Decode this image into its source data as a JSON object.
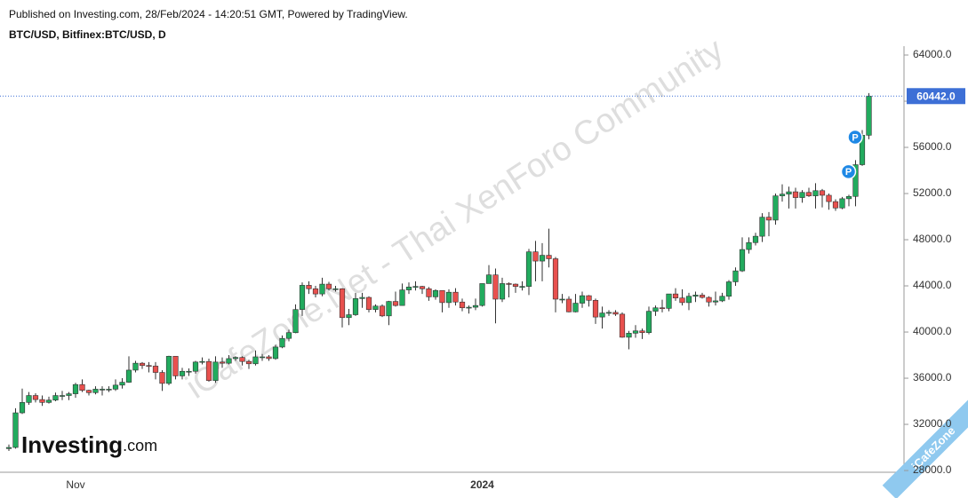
{
  "header": {
    "published": "Published on Investing.com, 28/Feb/2024 - 14:20:51 GMT, Powered by TradingView.",
    "symbol": "BTC/USD, Bitfinex:BTC/USD, D"
  },
  "watermark": "iCafeZone.Net - Thai XenForo Community",
  "logo": {
    "brand": "Investing",
    "suffix": ".com"
  },
  "badge": "iCafeZone",
  "chart_data": {
    "type": "candlestick",
    "categories": [
      null,
      null,
      null,
      null,
      null,
      null,
      null,
      null,
      null,
      null,
      "Nov",
      null,
      null,
      null,
      null,
      null,
      null,
      null,
      null,
      null,
      null,
      null,
      null,
      null,
      null,
      null,
      null,
      null,
      null,
      null,
      null,
      null,
      null,
      null,
      null,
      null,
      null,
      null,
      null,
      null,
      null,
      null,
      null,
      null,
      null,
      null,
      null,
      null,
      null,
      null,
      null,
      null,
      null,
      null,
      null,
      null,
      null,
      null,
      null,
      null,
      null,
      null,
      null,
      null,
      null,
      null,
      null,
      null,
      null,
      null,
      null,
      "2024",
      null,
      null,
      null,
      null,
      null,
      null,
      null,
      null,
      null,
      null,
      null,
      null,
      null,
      null,
      null,
      null,
      null,
      null,
      null,
      null,
      null,
      null,
      null,
      null,
      null,
      null,
      null,
      null,
      null,
      null,
      null,
      null,
      null,
      null,
      null,
      null,
      null,
      null,
      null,
      null,
      null,
      null,
      null,
      null,
      null,
      null,
      null,
      null,
      null,
      null,
      null,
      null,
      null,
      null,
      null,
      null,
      null,
      null
    ],
    "open": [
      29900,
      30000,
      33000,
      33900,
      34500,
      34150,
      33900,
      34100,
      34500,
      34500,
      34650,
      35450,
      34950,
      34750,
      35050,
      35050,
      35050,
      35400,
      35650,
      36700,
      37300,
      37100,
      37050,
      36500,
      35550,
      37900,
      36200,
      36600,
      36600,
      37400,
      37450,
      35800,
      37400,
      37300,
      37700,
      37800,
      37450,
      37250,
      37850,
      37850,
      37700,
      38700,
      39450,
      39950,
      41950,
      44050,
      43750,
      43300,
      44150,
      43750,
      43750,
      41250,
      41500,
      42900,
      43000,
      41950,
      42250,
      41400,
      42650,
      42300,
      43650,
      43900,
      43950,
      43750,
      43050,
      43600,
      42550,
      43450,
      42600,
      42100,
      42150,
      42300,
      44200,
      44950,
      42850,
      44200,
      44150,
      43950,
      43950,
      46950,
      46150,
      46650,
      46350,
      42850,
      42850,
      41750,
      42500,
      43150,
      42750,
      41300,
      41650,
      41700,
      41550,
      39550,
      39900,
      40100,
      39950,
      41800,
      42100,
      42050,
      43300,
      42950,
      42550,
      43100,
      43200,
      43000,
      42600,
      42700,
      43100,
      44350,
      45300,
      47150,
      47750,
      48300,
      49950,
      49700,
      51800,
      51950,
      52150,
      51650,
      52100,
      51800,
      52250,
      51850,
      51300,
      50750,
      51550,
      51750,
      54500,
      57050
    ],
    "high": [
      30250,
      33400,
      35100,
      34800,
      34700,
      34500,
      34400,
      34750,
      34900,
      34800,
      35600,
      35900,
      35000,
      35300,
      35300,
      35300,
      35900,
      36000,
      37900,
      37500,
      37400,
      37400,
      37400,
      36700,
      37950,
      37900,
      36900,
      36850,
      37500,
      37800,
      37700,
      37900,
      37800,
      38000,
      37900,
      37900,
      37600,
      38400,
      38100,
      38000,
      38900,
      39700,
      40200,
      42400,
      44300,
      44400,
      44000,
      44700,
      44350,
      44000,
      43800,
      42000,
      43400,
      43400,
      43100,
      42400,
      42400,
      42700,
      43500,
      44200,
      44300,
      44400,
      44000,
      43900,
      43700,
      43600,
      43700,
      43800,
      42900,
      42300,
      42900,
      44200,
      45800,
      45500,
      44700,
      44300,
      44200,
      44400,
      47200,
      47900,
      47700,
      48950,
      46500,
      43300,
      43100,
      43300,
      43500,
      43200,
      42900,
      42200,
      41900,
      41900,
      41700,
      40100,
      40600,
      40300,
      42200,
      42300,
      42800,
      43300,
      43800,
      43700,
      43400,
      43500,
      43400,
      43100,
      43500,
      43400,
      44500,
      45600,
      48200,
      48200,
      48600,
      50300,
      50400,
      52000,
      52800,
      52600,
      52500,
      52300,
      52500,
      52900,
      52400,
      52000,
      51500,
      51700,
      51900,
      54900,
      57500,
      60700
    ],
    "low": [
      29700,
      29900,
      32900,
      33700,
      33900,
      33600,
      33800,
      34000,
      34100,
      34100,
      34300,
      34800,
      34500,
      34600,
      34500,
      34800,
      34900,
      35100,
      35600,
      36500,
      36800,
      36500,
      35900,
      34900,
      35400,
      35900,
      35900,
      36200,
      36400,
      37200,
      35700,
      35600,
      36900,
      37200,
      37500,
      37100,
      36800,
      37100,
      37500,
      37500,
      37600,
      38600,
      39200,
      39900,
      41400,
      43300,
      43000,
      43100,
      43600,
      43500,
      40400,
      40600,
      41400,
      42100,
      41700,
      41700,
      41300,
      40600,
      42200,
      42300,
      43300,
      43600,
      43300,
      42700,
      42800,
      41700,
      42100,
      42300,
      41800,
      41600,
      41900,
      42200,
      44200,
      40750,
      42600,
      43000,
      43400,
      43600,
      43200,
      44400,
      44400,
      45600,
      41700,
      42500,
      41700,
      41700,
      42100,
      42200,
      40700,
      40300,
      41400,
      41400,
      39500,
      38500,
      39500,
      39400,
      39800,
      41400,
      41700,
      41800,
      42700,
      42300,
      41900,
      42600,
      42900,
      42200,
      42300,
      42600,
      42800,
      44000,
      45200,
      46800,
      47500,
      47800,
      48300,
      49300,
      51300,
      50700,
      50700,
      51200,
      51700,
      50700,
      50800,
      50600,
      50500,
      50650,
      50900,
      50900,
      54400,
      56700
    ],
    "close": [
      30000,
      33000,
      33900,
      34500,
      34150,
      33900,
      34100,
      34500,
      34500,
      34650,
      35450,
      34950,
      34750,
      35050,
      35050,
      35050,
      35400,
      35650,
      36700,
      37300,
      37100,
      37050,
      36500,
      35550,
      37900,
      36200,
      36600,
      36600,
      37400,
      37450,
      35800,
      37400,
      37300,
      37700,
      37800,
      37450,
      37250,
      37850,
      37850,
      37700,
      38700,
      39450,
      39950,
      41950,
      44050,
      43750,
      43300,
      44150,
      43750,
      43750,
      41250,
      41500,
      42900,
      43000,
      41950,
      42250,
      41400,
      42650,
      42300,
      43650,
      43900,
      43950,
      43750,
      43050,
      43600,
      42550,
      43450,
      42600,
      42100,
      42150,
      42300,
      44200,
      44950,
      42850,
      44200,
      44150,
      43950,
      43950,
      46950,
      46150,
      46650,
      46350,
      42850,
      42850,
      41750,
      42500,
      43150,
      42750,
      41300,
      41650,
      41700,
      41550,
      39550,
      39900,
      40100,
      39950,
      41800,
      42100,
      42050,
      43300,
      42950,
      42550,
      43100,
      43200,
      43000,
      42600,
      42700,
      43100,
      44350,
      45300,
      47150,
      47750,
      48300,
      49950,
      49700,
      51800,
      51950,
      52150,
      51650,
      52100,
      51800,
      52250,
      51850,
      51300,
      50750,
      51550,
      51750,
      54500,
      57050,
      60442
    ],
    "last_price": {
      "value": 60442,
      "label": "60442.0"
    },
    "markers": [
      {
        "index": 127,
        "label": "P"
      },
      {
        "index": 128,
        "label": "P"
      }
    ],
    "up_color": "#22ab5e",
    "down_color": "#e8504e",
    "outline_color": "#333333",
    "ylim": [
      27850,
      64770
    ],
    "yticks": [
      {
        "value": 28000,
        "label": "28000.0"
      },
      {
        "value": 32000,
        "label": "32000.0"
      },
      {
        "value": 36000,
        "label": "36000.0"
      },
      {
        "value": 40000,
        "label": "40000.0"
      },
      {
        "value": 44000,
        "label": "44000.0"
      },
      {
        "value": 48000,
        "label": "48000.0"
      },
      {
        "value": 52000,
        "label": "52000.0"
      },
      {
        "value": 56000,
        "label": "56000.0"
      },
      {
        "value": 60000,
        "label": "60000.0"
      },
      {
        "value": 64000,
        "label": "64000.0"
      }
    ],
    "grid": false
  }
}
